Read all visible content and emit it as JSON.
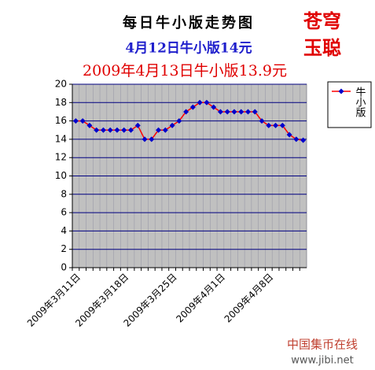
{
  "chart_data": {
    "type": "line",
    "title": "每日牛小版走势图",
    "subtitle": "4月12日牛小版14元",
    "annotation": "2009年4月13日牛小版13.9元",
    "signature": [
      "苍穹",
      "玉聪"
    ],
    "watermark": [
      "中国集币在线",
      "www.jibi.net"
    ],
    "categories": [
      "2009年3月11日",
      null,
      null,
      null,
      null,
      null,
      null,
      "2009年3月18日",
      null,
      null,
      null,
      null,
      null,
      null,
      "2009年3月25日",
      null,
      null,
      null,
      null,
      null,
      null,
      "2009年4月1日",
      null,
      null,
      null,
      null,
      null,
      null,
      "2009年4月8日",
      null,
      null,
      null,
      null,
      null
    ],
    "series": [
      {
        "name": "牛小版",
        "color": "#ff0000",
        "marker_color": "#0000cc",
        "values": [
          16,
          16,
          15.5,
          15,
          15,
          15,
          15,
          15,
          15,
          15.5,
          14,
          14,
          15,
          15,
          15.5,
          16,
          17,
          17.5,
          18,
          18,
          17.5,
          17,
          17,
          17,
          17,
          17,
          17,
          16,
          15.5,
          15.5,
          15.5,
          14.5,
          14,
          13.9
        ]
      }
    ],
    "ylim": [
      0,
      20
    ],
    "yticks": [
      0,
      2,
      4,
      6,
      8,
      10,
      12,
      14,
      16,
      18,
      20
    ],
    "grid": true,
    "legend": "right"
  }
}
